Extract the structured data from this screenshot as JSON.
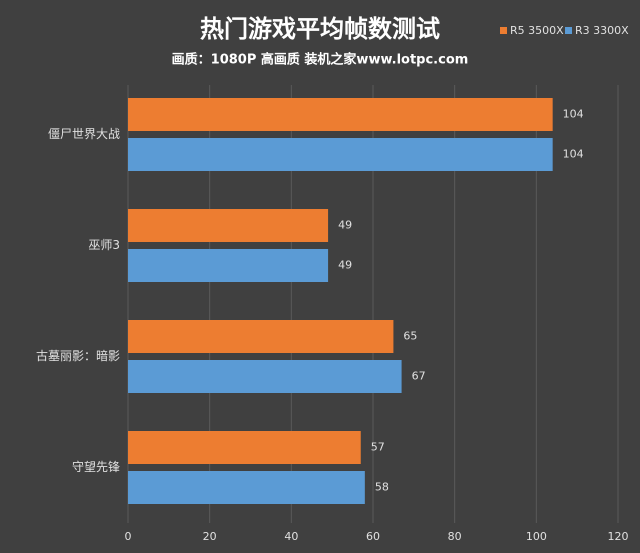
{
  "chart_data": {
    "type": "bar",
    "orientation": "horizontal",
    "title": "热门游戏平均帧数测试",
    "subtitle": "画质：1080P 高画质 装机之家www.lotpc.com",
    "categories": [
      "僵尸世界大战",
      "巫师3",
      "古墓丽影：暗影",
      "守望先锋"
    ],
    "series": [
      {
        "name": "R5 3500X",
        "color": "#ed7d31",
        "values": [
          104,
          49,
          65,
          57
        ]
      },
      {
        "name": "R3 3300X",
        "color": "#5b9bd5",
        "values": [
          104,
          49,
          67,
          58
        ]
      }
    ],
    "xlim": [
      0,
      120
    ],
    "xticks": [
      0,
      20,
      40,
      60,
      80,
      100,
      120
    ],
    "grid": true,
    "legend": "top-right"
  }
}
